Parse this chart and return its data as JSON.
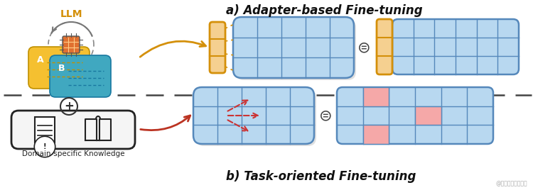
{
  "title_a": "a) Adapter-based Fine-tuning",
  "title_b": "b) Task-oriented Fine-tuning",
  "bg_color": "#ffffff",
  "llm_grid_color": "#b8d8f0",
  "llm_grid_edge_color": "#5588bb",
  "adapter_fill": "#f5d090",
  "adapter_edge": "#d4900a",
  "result_highlight_color": "#f5a8a8",
  "arrow_color_a": "#d4900a",
  "arrow_color_b": "#bb3322",
  "dashed_divider_color": "#444444",
  "label_llm": "LLM",
  "label_domain": "Domain-specific Knowledge",
  "watermark": "@稀土掘金技术社区",
  "chip_color": "#e07030",
  "bubble_a_color": "#f5c030",
  "bubble_a_edge": "#c09000",
  "bubble_b_color": "#40a8c0",
  "bubble_b_edge": "#1878a0",
  "domain_box_edge": "#222222",
  "domain_box_fill": "#f5f5f5"
}
